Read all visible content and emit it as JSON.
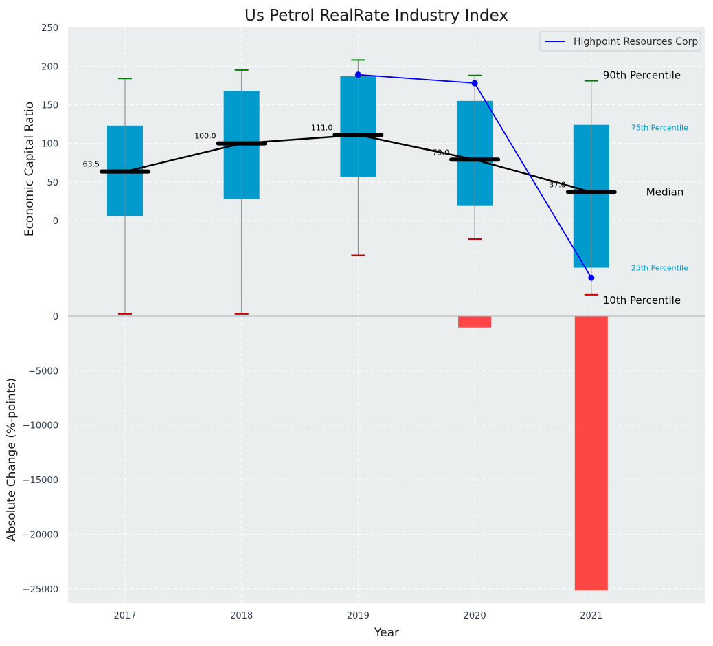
{
  "chart_data": {
    "type": "boxplot",
    "title": "Us Petrol RealRate Industry Index",
    "xlabel": "Year",
    "years": [
      "2017",
      "2018",
      "2019",
      "2020",
      "2021"
    ],
    "top_panel": {
      "ylabel": "Economic Capital Ratio",
      "ylim": [
        -124,
        250
      ],
      "yticks": [
        "250",
        "200",
        "150",
        "100",
        "50",
        "0"
      ],
      "ytick_values": [
        250,
        200,
        150,
        100,
        50,
        0
      ],
      "boxes": [
        {
          "year": "2017",
          "p10": -121,
          "p25": 6,
          "median": 63.5,
          "p75": 123,
          "p90": 184
        },
        {
          "year": "2018",
          "p10": -121,
          "p25": 28,
          "median": 100.0,
          "p75": 168,
          "p90": 195
        },
        {
          "year": "2019",
          "p10": -45,
          "p25": 57,
          "median": 111.0,
          "p75": 187,
          "p90": 208
        },
        {
          "year": "2020",
          "p10": -24,
          "p25": 19,
          "median": 79.0,
          "p75": 155,
          "p90": 188
        },
        {
          "year": "2021",
          "p10": -96,
          "p25": -61,
          "median": 37.0,
          "p75": 124,
          "p90": 181
        }
      ],
      "median_labels": [
        "63.5",
        "100.0",
        "111.0",
        "79.0",
        "37.0"
      ],
      "company": {
        "name": "Highpoint Resources Corp",
        "x": [
          "2019",
          "2020",
          "2021"
        ],
        "values": [
          189,
          178,
          -74
        ]
      },
      "annotations": {
        "p90": "90th Percentile",
        "p75": "75th Percentile",
        "median": "Median",
        "p25": "25th Percentile",
        "p10": "10th Percentile"
      },
      "legend_entry": "Highpoint Resources Corp",
      "legend_position": "top-right"
    },
    "bottom_panel": {
      "type": "bar",
      "ylabel": "Absolute Change (%-points)",
      "ylim": [
        -26500,
        0
      ],
      "yticks": [
        "0",
        "−5000",
        "−10000",
        "−15000",
        "−20000",
        "−25000"
      ],
      "ytick_values": [
        0,
        -5000,
        -10000,
        -15000,
        -20000,
        -25000
      ],
      "values": [
        0,
        0,
        0,
        -1050,
        -25150
      ]
    },
    "colors": {
      "box": "#009acd",
      "bar": "#ff3c3c",
      "company_line": "#0000ff",
      "median_line": "#000000",
      "p90_cap": "#008000",
      "p10_cap": "#cc0000",
      "plot_bg": "#eaeeef",
      "pct_label": "#0099cc"
    }
  }
}
